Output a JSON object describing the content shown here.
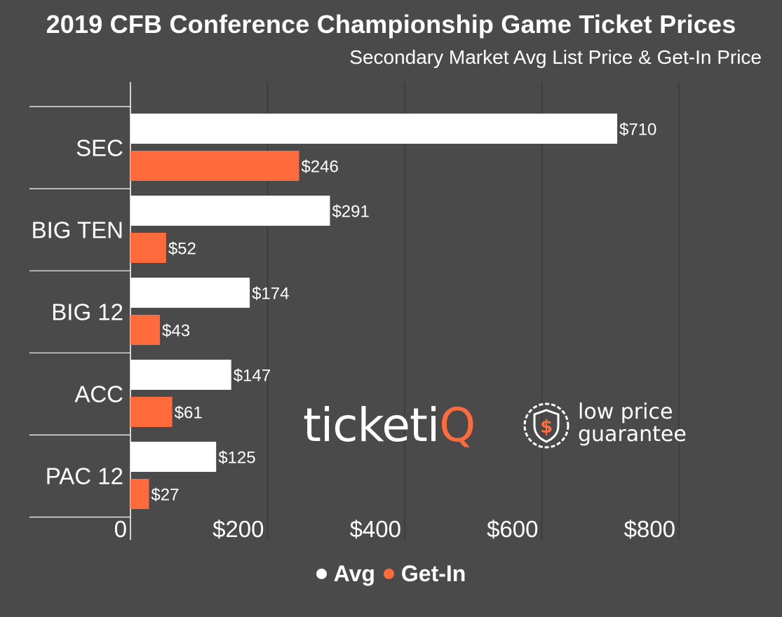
{
  "chart_data": {
    "type": "bar",
    "orientation": "horizontal",
    "title": "2019 CFB Conference Championship Game Ticket Prices",
    "subtitle": "Secondary Market Avg List Price & Get-In Price",
    "categories": [
      "SEC",
      "BIG TEN",
      "BIG 12",
      "ACC",
      "PAC 12"
    ],
    "series": [
      {
        "name": "Avg",
        "values": [
          710,
          291,
          174,
          147,
          125
        ],
        "labels": [
          "$710",
          "$291",
          "$174",
          "$147",
          "$125"
        ],
        "color": "#ffffff"
      },
      {
        "name": "Get-In",
        "values": [
          246,
          52,
          43,
          61,
          27
        ],
        "labels": [
          "$246",
          "$52",
          "$43",
          "$61",
          "$27"
        ],
        "color": "#ff6b3d"
      }
    ],
    "x_ticks": [
      0,
      200,
      400,
      600,
      800
    ],
    "x_tick_labels": [
      "0",
      "$200",
      "$400",
      "$600",
      "$800"
    ],
    "xlim": [
      0,
      800
    ],
    "grid": true,
    "legend_position": "bottom-center"
  },
  "colors": {
    "background": "#4a4a4a",
    "grid": "#3a3a3a",
    "avg": "#ffffff",
    "get_in": "#ff6b3d"
  },
  "logo": {
    "brand_ticket": "ticketi",
    "brand_q": "Q",
    "guarantee_line1": "low price",
    "guarantee_line2": "guarantee",
    "badge_icon": "shield-dollar-icon"
  }
}
